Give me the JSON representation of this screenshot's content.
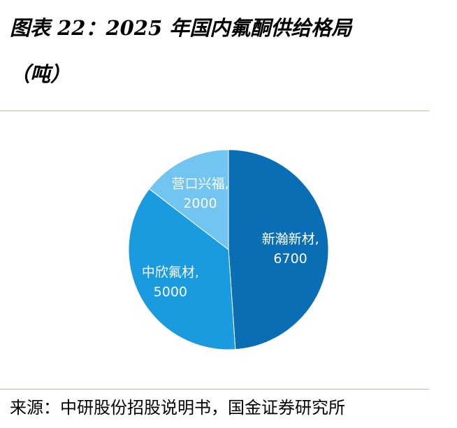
{
  "figure": {
    "title_line1": "图表 22：2025 年国内氟酮供给格局",
    "title_line2": "（吨）",
    "source": "来源：中研股份招股说明书，国金证券研究所"
  },
  "chart_data": {
    "type": "pie",
    "title": "2025 年国内氟酮供给格局",
    "unit": "吨",
    "slices": [
      {
        "label": "新瀚新材,",
        "value": 6700,
        "value_text": "6700",
        "color": "#0a6eb4"
      },
      {
        "label": "中欣氟材,",
        "value": 5000,
        "value_text": "5000",
        "color": "#1a9be0"
      },
      {
        "label": "营口兴福,",
        "value": 2000,
        "value_text": "2000",
        "color": "#72c4f1"
      }
    ],
    "start_angle_deg": 0,
    "direction": "clockwise",
    "data_labels": "inside"
  }
}
